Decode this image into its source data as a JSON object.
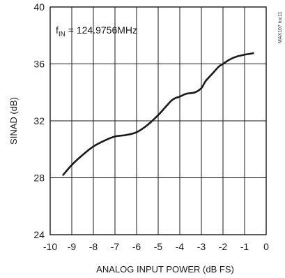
{
  "chart_data": {
    "type": "line",
    "xlabel": "ANALOG INPUT POWER (dB FS)",
    "ylabel": "SINAD (dB)",
    "xlim": [
      -10,
      0
    ],
    "ylim": [
      24,
      40
    ],
    "xticks": [
      -10,
      -9,
      -8,
      -7,
      -6,
      -5,
      -4,
      -3,
      -2,
      -1,
      0
    ],
    "yticks": [
      24,
      28,
      32,
      36,
      40
    ],
    "grid": true,
    "annotation": {
      "prefix": "f",
      "subscript": "IN",
      "text": " = 124.9756MHz"
    },
    "watermark": "MAX107 toc11",
    "series": [
      {
        "x": [
          -9.4,
          -9.0,
          -8.5,
          -8.0,
          -7.5,
          -7.0,
          -6.5,
          -6.0,
          -5.5,
          -5.0,
          -4.7,
          -4.4,
          -4.2,
          -4.0,
          -3.7,
          -3.3,
          -3.0,
          -2.8,
          -2.5,
          -2.2,
          -2.0,
          -1.7,
          -1.4,
          -1.0,
          -0.8,
          -0.6
        ],
        "y": [
          28.2,
          28.9,
          29.6,
          30.2,
          30.6,
          30.9,
          31.0,
          31.2,
          31.7,
          32.4,
          32.9,
          33.4,
          33.6,
          33.7,
          33.9,
          34.0,
          34.3,
          34.8,
          35.3,
          35.8,
          36.0,
          36.3,
          36.5,
          36.65,
          36.7,
          36.75
        ]
      }
    ]
  }
}
